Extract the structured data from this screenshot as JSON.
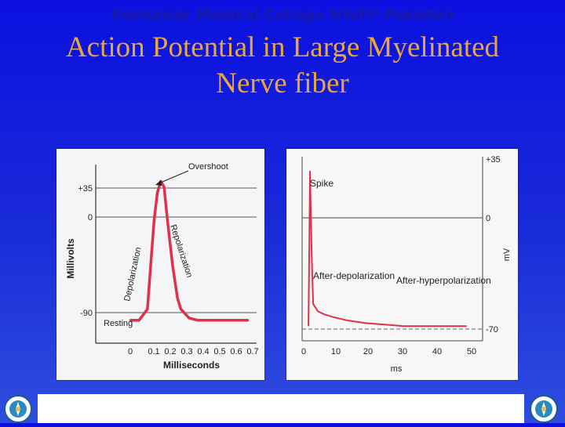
{
  "slide": {
    "title_line1": "Action Potential in Large Myelinated",
    "title_line2": "Nerve fiber",
    "footer": "Peshawar Medical College NWFP Pakistan"
  },
  "colors": {
    "background": "#0b10e0",
    "title": "#e9a640",
    "footer_text": "#1a1aa8",
    "trace": "#e0304a"
  },
  "chart_data": [
    {
      "type": "line",
      "title": "",
      "xlabel": "Milliseconds",
      "ylabel": "Millivolts",
      "x_ticks": [
        "0",
        "0.1",
        "0.2",
        "0.3",
        "0.4",
        "0.5",
        "0.6",
        "0.7"
      ],
      "y_ticks": [
        "+35",
        "0",
        "-90"
      ],
      "xlim": [
        -0.05,
        0.75
      ],
      "ylim": [
        -105,
        55
      ],
      "series": [
        {
          "x": [
            0,
            0.05,
            0.1,
            0.12,
            0.14,
            0.16,
            0.18,
            0.2,
            0.22,
            0.25,
            0.28,
            0.3,
            0.35,
            0.4,
            0.5,
            0.6,
            0.7
          ],
          "y": [
            -90,
            -90,
            -80,
            -40,
            0,
            25,
            35,
            30,
            0,
            -40,
            -70,
            -80,
            -88,
            -90,
            -90,
            -90,
            -90
          ]
        }
      ],
      "annotations": [
        "Overshoot",
        "Depolarization",
        "Repolarization",
        "Resting"
      ]
    },
    {
      "type": "line",
      "title": "",
      "xlabel": "ms",
      "ylabel": "mV",
      "x_ticks": [
        "0",
        "10",
        "20",
        "30",
        "40",
        "50"
      ],
      "y_ticks": [
        "+35",
        "0",
        "-70"
      ],
      "xlim": [
        -2,
        55
      ],
      "ylim": [
        -80,
        45
      ],
      "series": [
        {
          "x": [
            0,
            0.5,
            1,
            1.5,
            3,
            5,
            8,
            12,
            18,
            24,
            30,
            40,
            50
          ],
          "y": [
            -70,
            35,
            -20,
            -55,
            -60,
            -62,
            -64,
            -66,
            -68,
            -69,
            -70,
            -70,
            -70
          ]
        }
      ],
      "annotations": [
        "Spike",
        "After-depolarization",
        "After-hyperpolarization"
      ]
    }
  ]
}
